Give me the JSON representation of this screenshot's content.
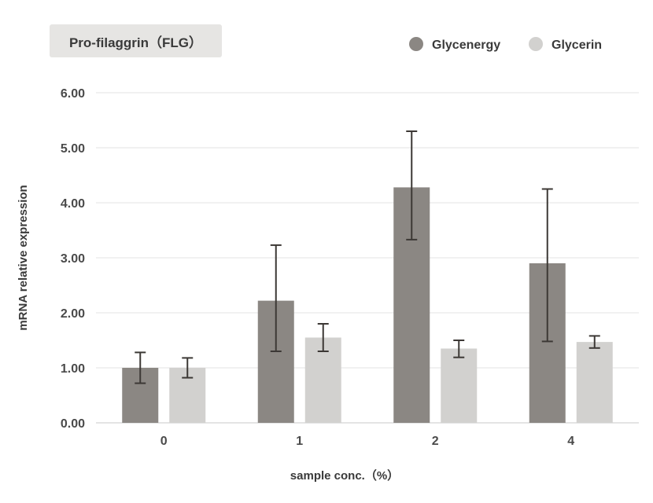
{
  "chart_data": {
    "type": "bar",
    "title": "Pro-filaggrin（FLG）",
    "xlabel": "sample conc.（%）",
    "ylabel": "mRNA relative expression",
    "categories": [
      "0",
      "1",
      "2",
      "4"
    ],
    "ylim": [
      0,
      6
    ],
    "yticks": [
      "0.00",
      "1.00",
      "2.00",
      "3.00",
      "4.00",
      "5.00",
      "6.00"
    ],
    "grid": true,
    "legend_position": "top-right",
    "series": [
      {
        "name": "Glycenergy",
        "color": "#8b8783",
        "values": [
          1.0,
          2.22,
          4.28,
          2.9
        ],
        "err_low": [
          0.72,
          1.3,
          3.33,
          1.48
        ],
        "err_high": [
          1.28,
          3.23,
          5.3,
          4.25
        ]
      },
      {
        "name": "Glycerin",
        "color": "#d2d1cf",
        "values": [
          1.0,
          1.55,
          1.35,
          1.47
        ],
        "err_low": [
          0.82,
          1.3,
          1.19,
          1.36
        ],
        "err_high": [
          1.18,
          1.8,
          1.5,
          1.58
        ]
      }
    ]
  }
}
